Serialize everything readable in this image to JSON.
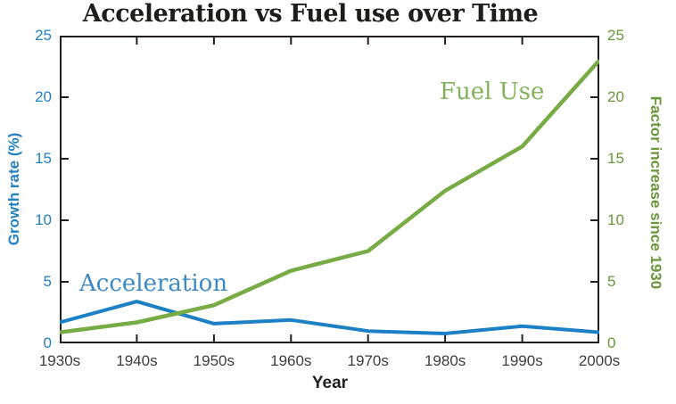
{
  "title": "Acceleration vs Fuel use over Time",
  "colors": {
    "accent_blue": "#1b80c4",
    "accent_green": "#77ab43",
    "blue_text": "#2281c3",
    "green_text": "#69973a",
    "blue_annotation": "#3c89c4",
    "green_annotation": "#83b25c",
    "ink": "#231f20",
    "x_tick_text": "#3d3d3d"
  },
  "chart_data": {
    "type": "line",
    "title": "Acceleration vs Fuel use over Time",
    "xlabel": "Year",
    "ylabel_left": "Growth rate (%)",
    "ylabel_right": "Factor increase since 1930",
    "categories": [
      "1930s",
      "1940s",
      "1950s",
      "1960s",
      "1970s",
      "1980s",
      "1990s",
      "2000s"
    ],
    "y_ticks": [
      0,
      5,
      10,
      15,
      20,
      25
    ],
    "ylim": [
      0,
      25
    ],
    "grid": false,
    "legend_position": "inline-annotations",
    "frame": "full-box-inward-ticks",
    "series": [
      {
        "name": "Acceleration",
        "axis": "left",
        "color": "#1b80c4",
        "annotation_color": "#3c89c4",
        "values": [
          1.7,
          3.4,
          1.6,
          1.9,
          1.0,
          0.8,
          1.4,
          0.9
        ]
      },
      {
        "name": "Fuel Use",
        "axis": "right",
        "color": "#77ab43",
        "annotation_color": "#83b25c",
        "values": [
          0.9,
          1.7,
          3.1,
          5.9,
          7.5,
          12.4,
          16.0,
          23.0
        ]
      }
    ]
  }
}
